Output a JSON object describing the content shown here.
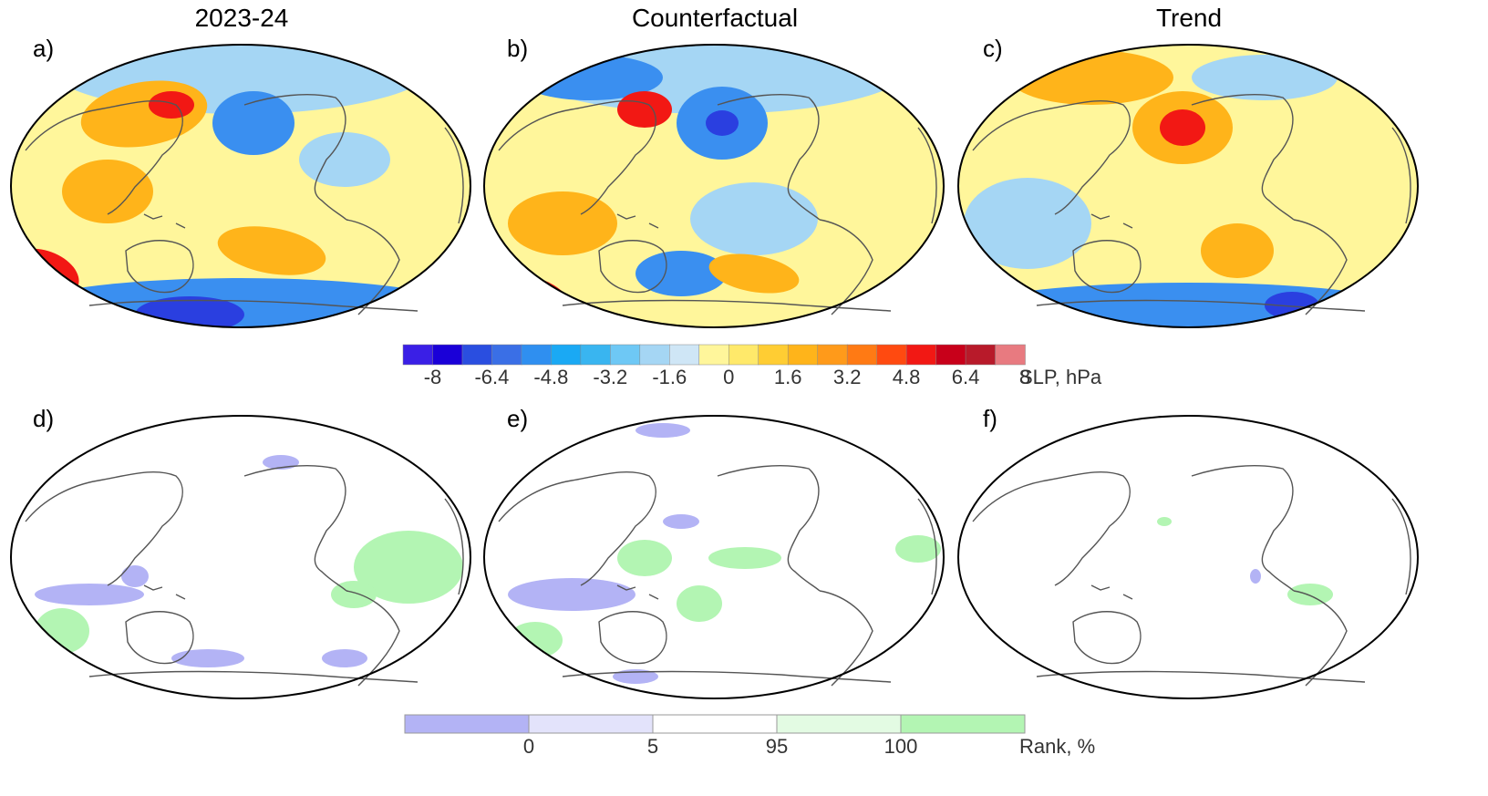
{
  "panels": [
    {
      "letter": "a)",
      "title": "2023-24"
    },
    {
      "letter": "b)",
      "title": "Counterfactual"
    },
    {
      "letter": "c)",
      "title": "Trend"
    },
    {
      "letter": "d)",
      "title": ""
    },
    {
      "letter": "e)",
      "title": ""
    },
    {
      "letter": "f)",
      "title": ""
    }
  ],
  "slp_colorbar": {
    "label": "SLP, hPa",
    "ticks": [
      "-8",
      "-6.4",
      "-4.8",
      "-3.2",
      "-1.6",
      "0",
      "1.6",
      "3.2",
      "4.8",
      "6.4",
      "8"
    ],
    "colors": [
      "#3a1fe6",
      "#1a00d8",
      "#2a4ee0",
      "#3a6fe6",
      "#2f8ff0",
      "#1aa9f4",
      "#39b5f0",
      "#6ec8f5",
      "#a5d6f4",
      "#cfe6f6",
      "#fff69b",
      "#ffe96a",
      "#ffcd33",
      "#ffb41a",
      "#ff9a1a",
      "#ff7a14",
      "#ff4a10",
      "#f21814",
      "#c8001a",
      "#b81a2a",
      "#e87a80"
    ]
  },
  "rank_colorbar": {
    "label": "Rank, %",
    "ticks": [
      "0",
      "5",
      "95",
      "100"
    ],
    "colors": [
      "#b3b3f5",
      "#e3e3fb",
      "#ffffff",
      "#e3fbe3",
      "#b3f5b3"
    ]
  },
  "map_colors": {
    "ocean_neutral": "#fff69b",
    "light_blue": "#a5d6f4",
    "blue": "#3a8ff0",
    "deep_blue": "#2a3fe0",
    "orange": "#ffb41a",
    "red": "#f21814",
    "coast": "#555555",
    "sig_low": "#b3b3f5",
    "sig_high": "#b3f5b3"
  }
}
